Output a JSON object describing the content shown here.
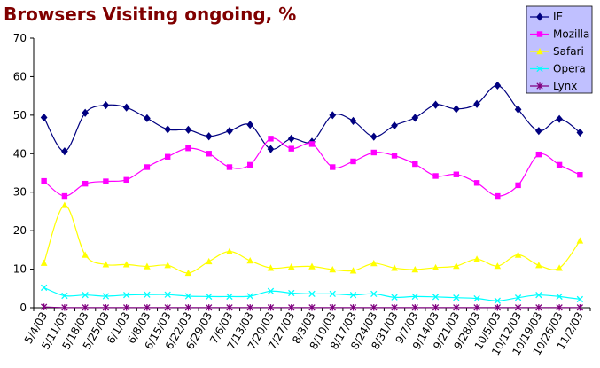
{
  "title": "Browsers Visiting ongoing, %",
  "chart_data": {
    "type": "line",
    "title": "Browsers Visiting ongoing, %",
    "xlabel": "",
    "ylabel": "",
    "ylim": [
      0,
      70
    ],
    "yticks": [
      0,
      10,
      20,
      30,
      40,
      50,
      60,
      70
    ],
    "grid": false,
    "legend": "top-right",
    "categories": [
      "5/4/03",
      "5/11/03",
      "5/18/03",
      "5/25/03",
      "6/1/03",
      "6/8/03",
      "6/15/03",
      "6/22/03",
      "6/29/03",
      "7/6/03",
      "7/13/03",
      "7/20/03",
      "7/27/03",
      "8/3/03",
      "8/10/03",
      "8/17/03",
      "8/24/03",
      "8/31/03",
      "9/7/03",
      "9/14/03",
      "9/21/03",
      "9/28/03",
      "10/5/03",
      "10/12/03",
      "10/19/03",
      "10/26/03",
      "11/2/03"
    ],
    "series": [
      {
        "name": "IE",
        "color": "#000080",
        "marker": "diamond",
        "values": [
          49.4,
          40.6,
          50.6,
          52.6,
          52.0,
          49.2,
          46.3,
          46.2,
          44.5,
          45.9,
          47.5,
          41.2,
          43.9,
          43.1,
          50.0,
          48.5,
          44.4,
          47.3,
          49.3,
          52.7,
          51.6,
          52.9,
          57.7,
          51.5,
          45.9,
          49.0,
          45.5
        ]
      },
      {
        "name": "Mozilla",
        "color": "#ff00ff",
        "marker": "square",
        "values": [
          32.9,
          29.0,
          32.2,
          32.8,
          33.2,
          36.5,
          39.2,
          41.4,
          40.0,
          36.5,
          37.1,
          43.9,
          41.3,
          42.5,
          36.5,
          38.0,
          40.3,
          39.5,
          37.3,
          34.2,
          34.6,
          32.4,
          29.0,
          31.8,
          39.8,
          37.1,
          34.5
        ]
      },
      {
        "name": "Safari",
        "color": "#ffff00",
        "marker": "triangle",
        "values": [
          11.6,
          26.6,
          13.7,
          11.2,
          11.2,
          10.7,
          11.0,
          9.0,
          12.0,
          14.6,
          12.2,
          10.3,
          10.6,
          10.7,
          9.9,
          9.6,
          11.5,
          10.3,
          9.9,
          10.4,
          10.8,
          12.6,
          10.8,
          13.7,
          11.0,
          10.3,
          17.4
        ]
      },
      {
        "name": "Opera",
        "color": "#00ffff",
        "marker": "x",
        "values": [
          5.2,
          3.1,
          3.3,
          3.0,
          3.3,
          3.4,
          3.4,
          3.0,
          2.9,
          2.9,
          3.0,
          4.3,
          3.8,
          3.6,
          3.6,
          3.3,
          3.6,
          2.7,
          2.9,
          2.8,
          2.6,
          2.4,
          1.8,
          2.6,
          3.3,
          2.9,
          2.2
        ]
      },
      {
        "name": "Lynx",
        "color": "#800080",
        "marker": "star",
        "values": [
          0.2,
          0.05,
          0.05,
          0.05,
          0.05,
          0.05,
          0.05,
          0.05,
          0.05,
          0.05,
          0.05,
          0.05,
          0.05,
          0.05,
          0.05,
          0.05,
          0.05,
          0.05,
          0.05,
          0.05,
          0.05,
          0.05,
          0.05,
          0.05,
          0.05,
          0.05,
          0.05
        ]
      }
    ]
  }
}
